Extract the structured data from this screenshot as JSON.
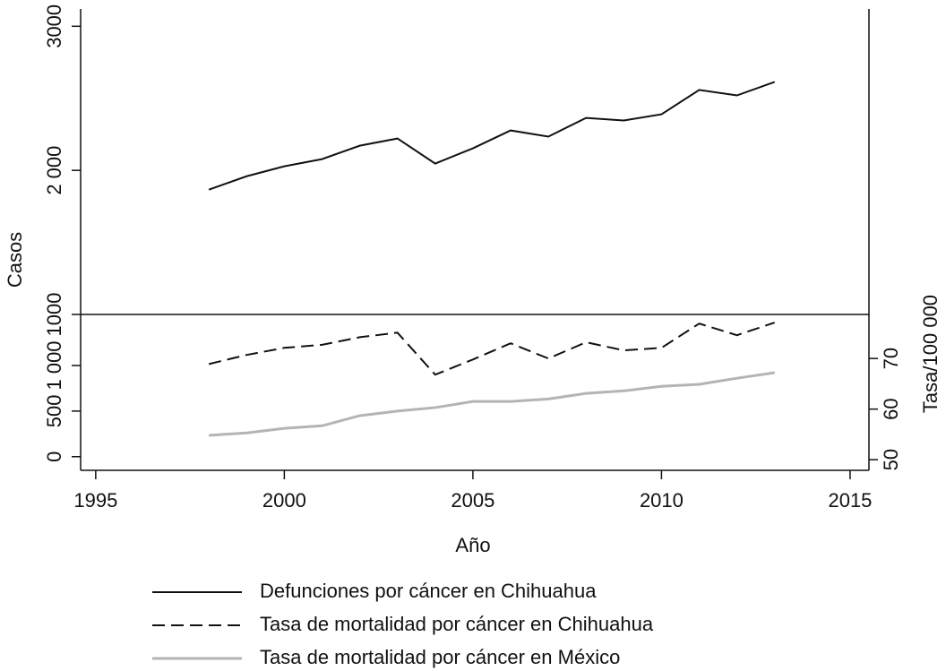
{
  "chart_data": {
    "type": "line",
    "x_label": "Año",
    "y_label": "Casos",
    "y2_label": "Tasa/100 000",
    "x": [
      1998,
      1999,
      2000,
      2001,
      2002,
      2003,
      2004,
      2005,
      2006,
      2007,
      2008,
      2009,
      2010,
      2011,
      2012,
      2013
    ],
    "xlim": [
      1994.6,
      2015.5
    ],
    "xticks": [
      1995,
      2000,
      2005,
      2010,
      2015
    ],
    "ylim": [
      1000,
      3120
    ],
    "yticks": [
      1000,
      {
        "value": 2000,
        "label": "2 000"
      },
      3000
    ],
    "y_lower_lim": [
      -150,
      1560
    ],
    "y_lower_ticks": [
      0,
      500,
      {
        "value": 1000,
        "label": "1 000"
      }
    ],
    "y2lim": [
      47.9,
      78.7
    ],
    "y2ticks": [
      50,
      60,
      70
    ],
    "series": [
      {
        "name": "Defunciones por cáncer en Chihuahua",
        "color": "#111111",
        "dash": false,
        "axis": "y",
        "values": [
          1866,
          1959,
          2028,
          2078,
          2171,
          2221,
          2047,
          2153,
          2277,
          2234,
          2364,
          2346,
          2389,
          2558,
          2520,
          2614
        ]
      },
      {
        "name": "Tasa de mortalidad por cáncer en Chihuahua",
        "color": "#111111",
        "dash": true,
        "axis": "y2",
        "values": [
          68.9,
          70.7,
          72.1,
          72.7,
          74.2,
          75.1,
          66.8,
          69.8,
          73.0,
          70.0,
          73.2,
          71.6,
          72.1,
          76.9,
          74.6,
          77.1
        ]
      },
      {
        "name": "Tasa de mortalidad por cáncer en México",
        "color": "#b4b4b4",
        "dash": false,
        "axis": "y2",
        "values": [
          54.8,
          55.3,
          56.2,
          56.7,
          58.7,
          59.6,
          60.3,
          61.5,
          61.5,
          62.0,
          63.1,
          63.6,
          64.5,
          64.9,
          66.1,
          67.2
        ]
      }
    ]
  }
}
